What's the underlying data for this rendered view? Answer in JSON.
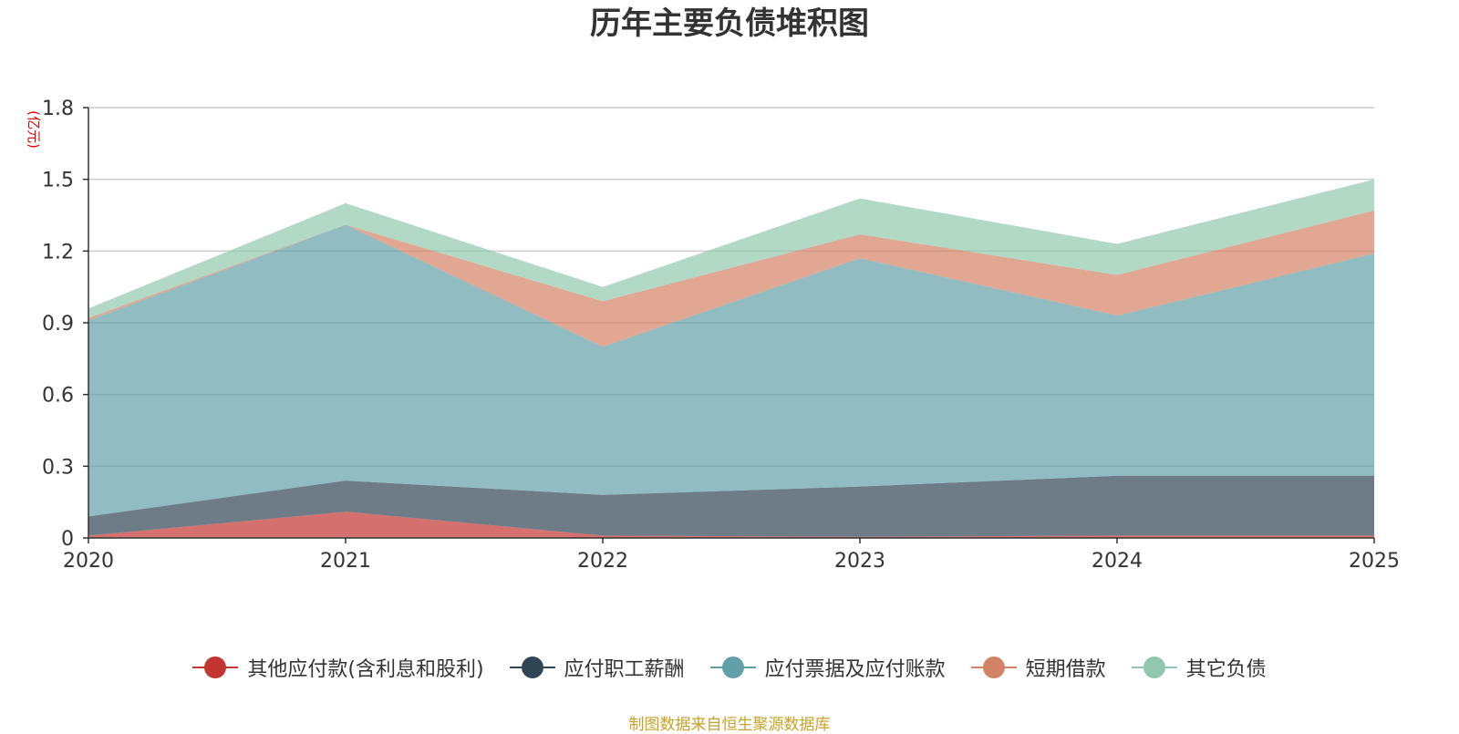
{
  "chart_data": {
    "type": "area",
    "stacked": true,
    "title": "历年主要负债堆积图",
    "ylabel": "(亿元)",
    "xlabel": "",
    "x": [
      "2020",
      "2021",
      "2022",
      "2023",
      "2024",
      "2025"
    ],
    "ylim": [
      0,
      1.8
    ],
    "yticks": [
      "0",
      "0.3",
      "0.6",
      "0.9",
      "1.2",
      "1.5",
      "1.8"
    ],
    "grid": true,
    "legend_position": "bottom",
    "series": [
      {
        "name": "其他应付款(含利息和股利)",
        "color": "#c23531",
        "values": [
          0.01,
          0.11,
          0.01,
          0.005,
          0.01,
          0.01
        ]
      },
      {
        "name": "应付职工薪酬",
        "color": "#2f4554",
        "values": [
          0.08,
          0.13,
          0.17,
          0.21,
          0.25,
          0.25
        ]
      },
      {
        "name": "应付票据及应付账款",
        "color": "#61a0a8",
        "values": [
          0.82,
          1.07,
          0.62,
          0.955,
          0.67,
          0.93
        ]
      },
      {
        "name": "短期借款",
        "color": "#d48265",
        "values": [
          0.01,
          0.0,
          0.19,
          0.1,
          0.17,
          0.18
        ]
      },
      {
        "name": "其它负债",
        "color": "#91c7ae",
        "values": [
          0.04,
          0.09,
          0.06,
          0.15,
          0.13,
          0.13
        ]
      }
    ]
  },
  "source_note": "制图数据来自恒生聚源数据库"
}
